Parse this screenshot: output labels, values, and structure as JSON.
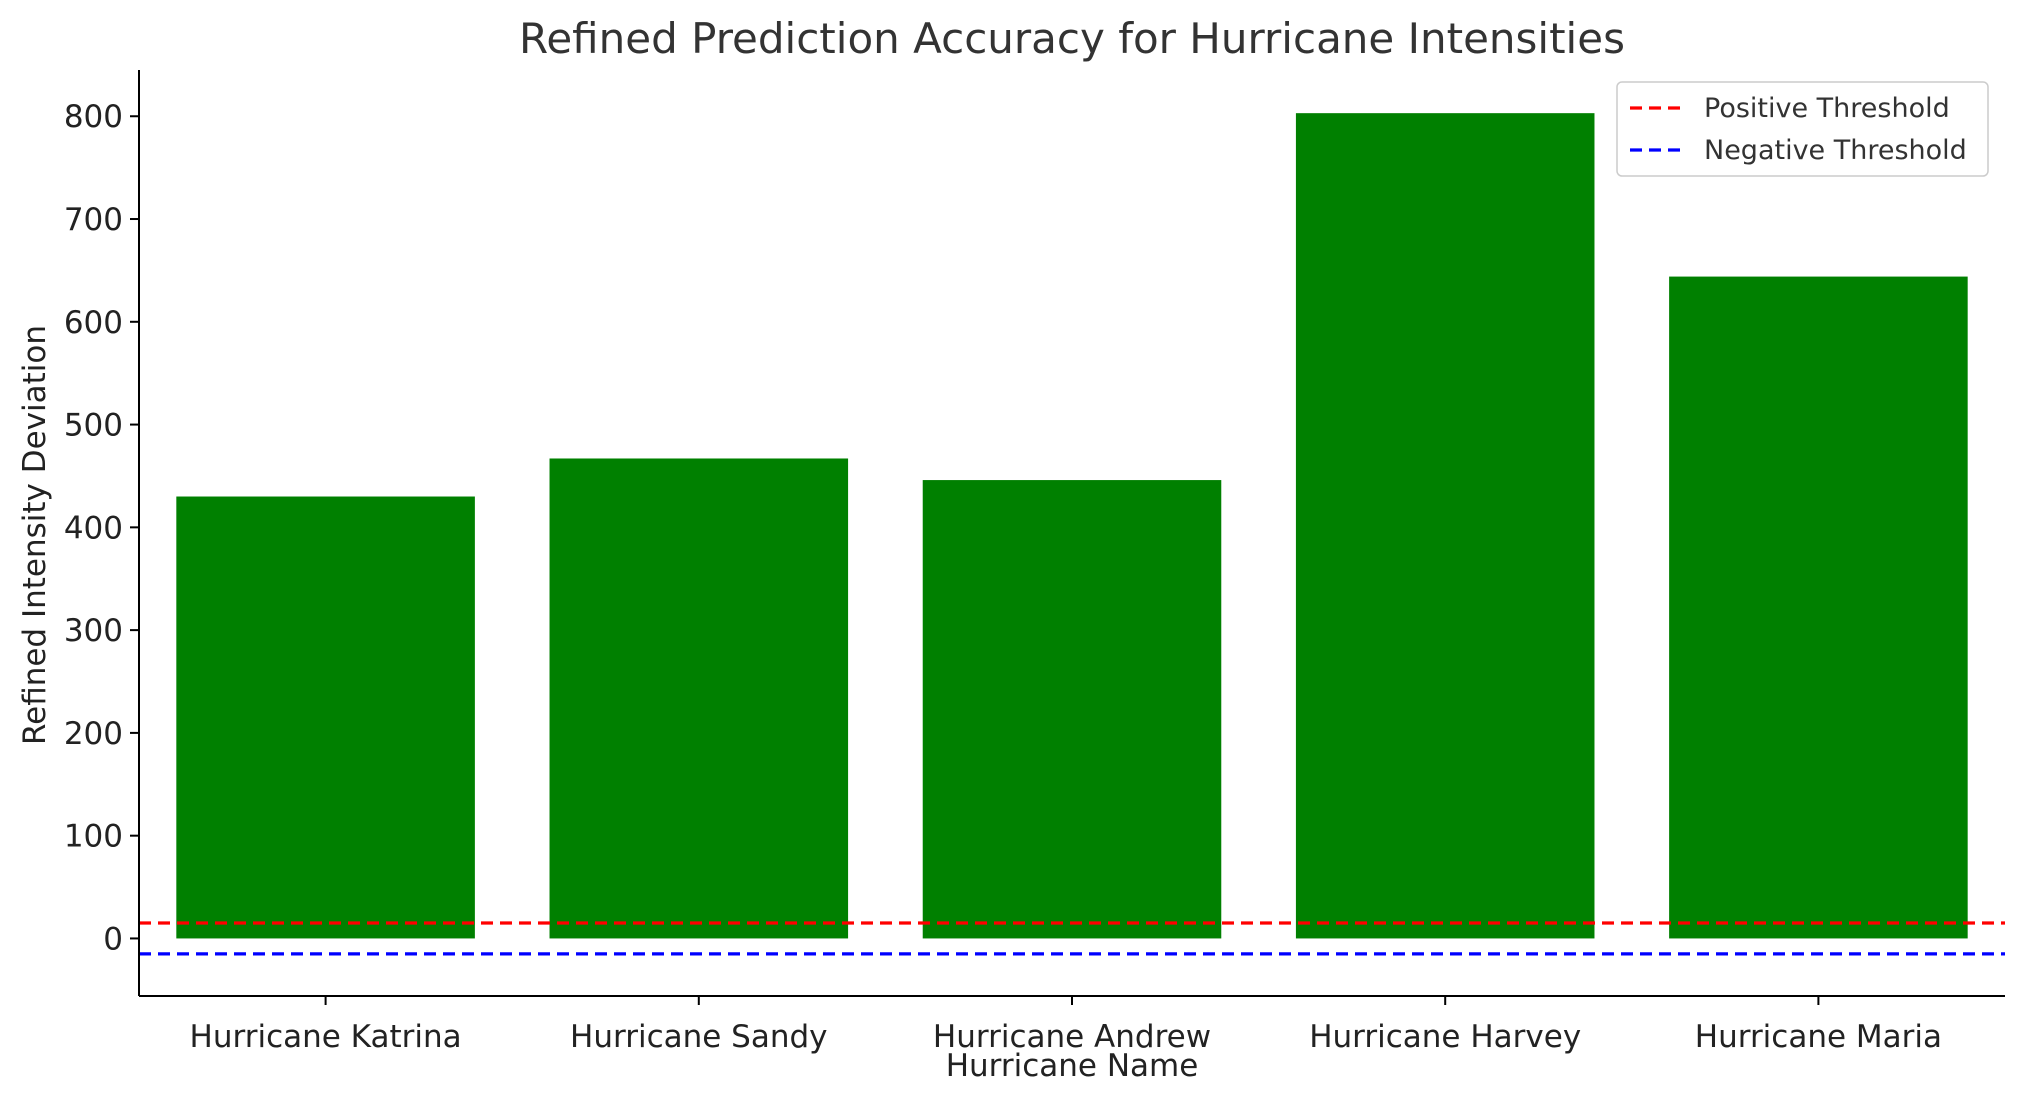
{
  "chart_data": {
    "type": "bar",
    "title": "Refined Prediction Accuracy for Hurricane Intensities",
    "xlabel": "Hurricane Name",
    "ylabel": "Refined Intensity Deviation",
    "categories": [
      "Hurricane Katrina",
      "Hurricane Sandy",
      "Hurricane Andrew",
      "Hurricane Harvey",
      "Hurricane Maria"
    ],
    "values": [
      430,
      467,
      446,
      803,
      644
    ],
    "bar_color": "#008000",
    "ylim": [
      -56,
      845
    ],
    "yticks": [
      0,
      100,
      200,
      300,
      400,
      500,
      600,
      700,
      800
    ],
    "grid": false,
    "thresholds": [
      {
        "name": "Positive Threshold",
        "value": 15,
        "color": "#ff0000",
        "style": "dashed"
      },
      {
        "name": "Negative Threshold",
        "value": -15,
        "color": "#0000ff",
        "style": "dashed"
      }
    ],
    "legend": {
      "position": "top-right"
    }
  }
}
